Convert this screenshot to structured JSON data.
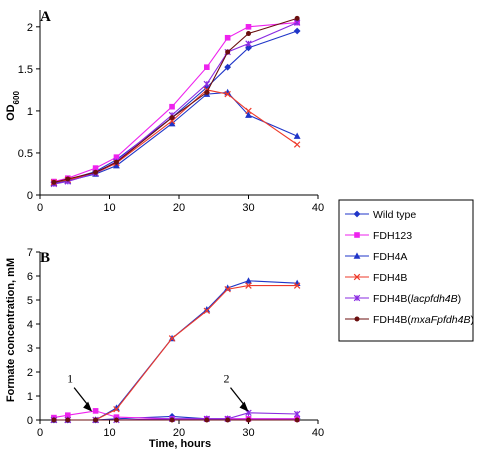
{
  "legend": {
    "entries": [
      {
        "label": "Wild type",
        "color": "#1f35c8",
        "marker": "diamond"
      },
      {
        "label": "FDH123",
        "color": "#ee22ee",
        "marker": "square"
      },
      {
        "label": "FDH4A",
        "color": "#1f35c8",
        "marker": "triangle"
      },
      {
        "label": "FDH4B",
        "color": "#ee3a2a",
        "marker": "x"
      },
      {
        "label_plain": "FDH4B(",
        "label_italic": "lacpfdh4B",
        "label_end": ")",
        "color": "#8a2be2",
        "marker": "x-star"
      },
      {
        "label_plain": "FDH4B(",
        "label_italic": "mxaFpfdh4B",
        "label_end": ")",
        "color": "#6b0f0f",
        "marker": "circle"
      }
    ]
  },
  "chart_data": [
    {
      "panel_label": "A",
      "type": "line",
      "ylabel_main": "OD",
      "ylabel_sub": "600",
      "xlabel": "",
      "xlim": [
        0,
        40
      ],
      "ylim": [
        0,
        2.2
      ],
      "xticks": [
        "0",
        "10",
        "20",
        "30",
        "40"
      ],
      "yticks": [
        "0",
        "0.5",
        "1",
        "1.5",
        "2"
      ],
      "ytick_values": [
        0,
        0.5,
        1,
        1.5,
        2
      ],
      "series": [
        {
          "name": "Wild type",
          "x": [
            2,
            4,
            8,
            11,
            19,
            24,
            27,
            30,
            37
          ],
          "y": [
            0.15,
            0.18,
            0.28,
            0.42,
            0.92,
            1.28,
            1.52,
            1.75,
            1.95
          ]
        },
        {
          "name": "FDH123",
          "x": [
            2,
            4,
            8,
            11,
            19,
            24,
            27,
            30,
            37
          ],
          "y": [
            0.16,
            0.2,
            0.32,
            0.45,
            1.05,
            1.52,
            1.87,
            2.0,
            2.05
          ]
        },
        {
          "name": "FDH4A",
          "x": [
            2,
            4,
            8,
            11,
            19,
            24,
            27,
            30,
            37
          ],
          "y": [
            0.14,
            0.17,
            0.25,
            0.35,
            0.85,
            1.2,
            1.22,
            0.95,
            0.7
          ]
        },
        {
          "name": "FDH4B",
          "x": [
            2,
            4,
            8,
            11,
            19,
            24,
            27,
            30,
            37
          ],
          "y": [
            0.15,
            0.18,
            0.26,
            0.38,
            0.88,
            1.25,
            1.2,
            1.0,
            0.6
          ]
        },
        {
          "name": "FDH4B(lacpfdh4B)",
          "x": [
            2,
            4,
            8,
            11,
            19,
            24,
            27,
            30,
            37
          ],
          "y": [
            0.13,
            0.16,
            0.26,
            0.4,
            0.95,
            1.32,
            1.7,
            1.8,
            2.05
          ]
        },
        {
          "name": "FDH4B(mxaFpfdh4B)",
          "x": [
            2,
            4,
            8,
            11,
            19,
            24,
            27,
            30,
            37
          ],
          "y": [
            0.15,
            0.19,
            0.27,
            0.39,
            0.92,
            1.22,
            1.7,
            1.92,
            2.1
          ]
        }
      ]
    },
    {
      "panel_label": "B",
      "type": "line",
      "ylabel_main": "Formate concentration, mM",
      "xlabel": "Time, hours",
      "xlim": [
        0,
        40
      ],
      "ylim": [
        0,
        7
      ],
      "xticks": [
        "0",
        "10",
        "20",
        "30",
        "40"
      ],
      "yticks": [
        "0",
        "1",
        "2",
        "3",
        "4",
        "5",
        "6",
        "7"
      ],
      "ytick_values": [
        0,
        1,
        2,
        3,
        4,
        5,
        6,
        7
      ],
      "annotations": [
        {
          "text": "1",
          "x": 7.5,
          "y": 0.35
        },
        {
          "text": "2",
          "x": 30,
          "y": 0.35
        }
      ],
      "series": [
        {
          "name": "Wild type",
          "x": [
            2,
            4,
            8,
            11,
            19,
            24,
            27,
            30,
            37
          ],
          "y": [
            0.0,
            0.0,
            0.0,
            0.05,
            0.15,
            0.05,
            0.05,
            0.05,
            0.05
          ]
        },
        {
          "name": "FDH123",
          "x": [
            2,
            4,
            8,
            11,
            19,
            24,
            27,
            30,
            37
          ],
          "y": [
            0.1,
            0.2,
            0.38,
            0.12,
            0.05,
            0.05,
            0.05,
            0.05,
            0.05
          ]
        },
        {
          "name": "FDH4A",
          "x": [
            2,
            4,
            8,
            11,
            19,
            24,
            27,
            30,
            37
          ],
          "y": [
            0.0,
            0.0,
            0.0,
            0.5,
            3.4,
            4.6,
            5.5,
            5.8,
            5.7
          ]
        },
        {
          "name": "FDH4B",
          "x": [
            2,
            4,
            8,
            11,
            19,
            24,
            27,
            30,
            37
          ],
          "y": [
            0.0,
            0.0,
            0.0,
            0.45,
            3.4,
            4.55,
            5.45,
            5.6,
            5.6
          ]
        },
        {
          "name": "FDH4B(lacpfdh4B)",
          "x": [
            2,
            4,
            8,
            11,
            19,
            24,
            27,
            30,
            37
          ],
          "y": [
            0.0,
            0.0,
            0.0,
            0.0,
            0.05,
            0.05,
            0.05,
            0.3,
            0.25
          ]
        },
        {
          "name": "FDH4B(mxaFpfdh4B)",
          "x": [
            2,
            4,
            8,
            11,
            19,
            24,
            27,
            30,
            37
          ],
          "y": [
            0.0,
            0.0,
            0.0,
            0.0,
            0.0,
            0.0,
            0.0,
            0.0,
            0.0
          ]
        }
      ]
    }
  ]
}
